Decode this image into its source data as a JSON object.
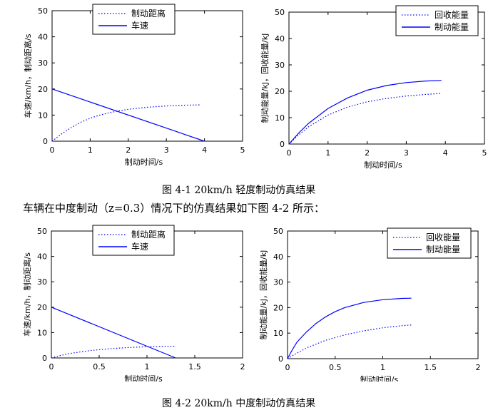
{
  "chart_data": [
    {
      "type": "line",
      "ylabel": "车速/km/h，制动距离/s",
      "xlabel": "制动时间/s",
      "xlim": [
        0,
        5
      ],
      "ylim": [
        0,
        50
      ],
      "xticks": [
        "0",
        "1",
        "2",
        "3",
        "4",
        "5"
      ],
      "yticks": [
        "0",
        "10",
        "20",
        "30",
        "40",
        "50"
      ],
      "legend": "top-right",
      "series": [
        {
          "name": "制动距离",
          "style": "dotted",
          "x": [
            0,
            0.25,
            0.5,
            0.75,
            1,
            1.25,
            1.5,
            1.75,
            2,
            2.5,
            3,
            3.5,
            3.9
          ],
          "y": [
            0,
            2.8,
            5.2,
            7.2,
            8.8,
            10,
            10.9,
            11.6,
            12.2,
            13,
            13.5,
            13.8,
            13.9
          ]
        },
        {
          "name": "车速",
          "style": "solid",
          "x": [
            0,
            4
          ],
          "y": [
            20,
            0
          ]
        }
      ]
    },
    {
      "type": "line",
      "ylabel": "制动能量/kJ，回收能量/kJ",
      "xlabel": "制动时间/s",
      "xlim": [
        0,
        5
      ],
      "ylim": [
        0,
        50
      ],
      "xticks": [
        "0",
        "1",
        "2",
        "3",
        "4",
        "5"
      ],
      "yticks": [
        "0",
        "10",
        "20",
        "30",
        "40",
        "50"
      ],
      "legend": "top-right",
      "series": [
        {
          "name": "回收能量",
          "style": "dotted",
          "x": [
            0,
            0.25,
            0.5,
            1,
            1.5,
            2,
            2.5,
            3,
            3.5,
            3.9
          ],
          "y": [
            0,
            3.5,
            6.5,
            11,
            14,
            16,
            17.3,
            18.2,
            18.8,
            19.2
          ]
        },
        {
          "name": "制动能量",
          "style": "solid",
          "x": [
            0,
            0.25,
            0.5,
            1,
            1.5,
            2,
            2.5,
            3,
            3.5,
            3.9
          ],
          "y": [
            0,
            4.2,
            7.8,
            13.5,
            17.5,
            20.4,
            22.2,
            23.3,
            23.9,
            24.1
          ]
        }
      ]
    },
    {
      "type": "line",
      "ylabel": "车速/km/h，制动距离/s",
      "xlabel": "制动时间/s",
      "xlim": [
        0,
        2
      ],
      "ylim": [
        0,
        50
      ],
      "xticks": [
        "0",
        "0.5",
        "1",
        "1.5",
        "2"
      ],
      "yticks": [
        "0",
        "10",
        "20",
        "30",
        "40",
        "50"
      ],
      "legend": "top-right",
      "series": [
        {
          "name": "制动距离",
          "style": "dotted",
          "x": [
            0,
            0.1,
            0.2,
            0.4,
            0.6,
            0.8,
            1,
            1.2,
            1.3
          ],
          "y": [
            0,
            1,
            1.8,
            2.9,
            3.6,
            4.1,
            4.4,
            4.6,
            4.6
          ]
        },
        {
          "name": "车速",
          "style": "solid",
          "x": [
            0,
            1.3
          ],
          "y": [
            20,
            0
          ]
        }
      ]
    },
    {
      "type": "line",
      "ylabel": "制动能量/kJ，回收能量/kJ",
      "xlabel": "制动时间/s",
      "xlim": [
        0,
        2
      ],
      "ylim": [
        0,
        50
      ],
      "xticks": [
        "0",
        "0.5",
        "1",
        "1.5",
        "2"
      ],
      "yticks": [
        "0",
        "10",
        "20",
        "30",
        "40",
        "50"
      ],
      "legend": "top-right",
      "series": [
        {
          "name": "回收能量",
          "style": "dotted",
          "x": [
            0,
            0.1,
            0.2,
            0.4,
            0.6,
            0.8,
            1,
            1.2,
            1.3
          ],
          "y": [
            0,
            2.2,
            4.2,
            7.2,
            9.3,
            10.9,
            12.1,
            12.9,
            13.2
          ]
        },
        {
          "name": "制动能量",
          "style": "solid",
          "x": [
            0,
            0.05,
            0.1,
            0.2,
            0.3,
            0.4,
            0.5,
            0.6,
            0.8,
            1,
            1.2,
            1.3
          ],
          "y": [
            0,
            3.5,
            6.5,
            10.5,
            13.8,
            16.4,
            18.4,
            20,
            22,
            23.1,
            23.6,
            23.7
          ]
        }
      ]
    }
  ],
  "captions": {
    "fig1": "图 4-1 20km/h 轻度制动仿真结果",
    "para": "车辆在中度制动（z=0.3）情况下的仿真结果如下图 4-2 所示：",
    "fig2": "图 4-2 20km/h 中度制动仿真结果"
  },
  "colors": {
    "line": "#0000ff",
    "axis": "#000000"
  }
}
